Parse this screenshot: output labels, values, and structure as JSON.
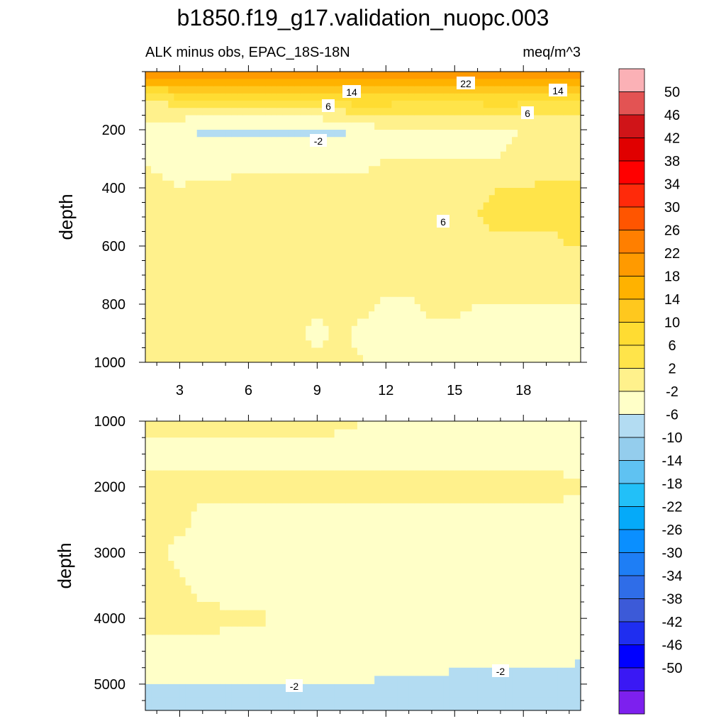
{
  "figure": {
    "title": "b1850.f19_g17.validation_nuopc.003",
    "left_subtitle": "ALK minus obs, EPAC_18S-18N",
    "right_subtitle": "meq/m^3"
  },
  "chart_data": [
    {
      "type": "heatmap",
      "name": "upper",
      "x": [
        1,
        2,
        3,
        4,
        5,
        6,
        7,
        8,
        9,
        10,
        11,
        12,
        13,
        14,
        15,
        16,
        17,
        18,
        19,
        20,
        21
      ],
      "y": [
        0,
        100,
        200,
        300,
        400,
        500,
        600,
        700,
        800,
        900,
        1000
      ],
      "xlim": [
        1.5,
        20.5
      ],
      "ylim": [
        0,
        1000
      ],
      "y_reversed": true,
      "xticks": [
        3,
        6,
        9,
        12,
        15,
        18
      ],
      "yticks": [
        200,
        400,
        600,
        800,
        1000
      ],
      "ylabel": "depth",
      "z": [
        [
          26,
          26,
          26,
          26,
          25,
          25,
          25,
          25,
          25,
          25,
          25,
          24,
          24,
          25,
          26,
          27,
          27,
          27,
          26,
          26,
          26
        ],
        [
          6,
          6,
          8,
          8,
          8,
          8,
          9,
          9,
          10,
          11,
          12,
          12,
          10,
          9,
          10,
          11,
          12,
          11,
          10,
          10,
          10
        ],
        [
          1,
          0,
          -1,
          -3,
          -3,
          -3,
          -3,
          -3,
          -3,
          -3,
          0,
          1,
          1,
          1,
          1,
          1,
          1,
          2,
          2,
          2,
          2
        ],
        [
          3,
          1,
          0,
          0,
          0,
          1,
          1,
          1,
          1,
          1,
          1,
          2,
          2,
          2,
          2,
          2,
          2,
          3,
          3,
          3,
          3
        ],
        [
          3,
          3,
          2,
          3,
          3,
          3,
          3,
          3,
          3,
          3,
          3,
          4,
          4,
          4,
          5,
          5,
          6,
          6,
          7,
          7,
          7
        ],
        [
          3,
          3,
          3,
          3,
          3,
          3,
          3,
          3,
          3,
          4,
          4,
          4,
          5,
          5,
          6,
          6,
          7,
          7,
          7,
          7,
          7
        ],
        [
          3,
          3,
          3,
          3,
          3,
          3,
          3,
          3,
          3,
          3,
          3,
          4,
          4,
          4,
          5,
          5,
          5,
          5,
          5,
          6,
          6
        ],
        [
          3,
          3,
          3,
          3,
          3,
          3,
          3,
          3,
          3,
          3,
          3,
          3,
          3,
          3,
          3,
          3,
          3,
          3,
          3,
          3,
          3
        ],
        [
          3,
          3,
          3,
          3,
          3,
          3,
          3,
          3,
          3,
          2.5,
          2.5,
          1.5,
          1.5,
          2.5,
          2.5,
          2,
          2,
          2,
          2,
          2,
          2
        ],
        [
          3,
          3,
          3,
          3,
          3,
          3,
          3,
          3,
          1,
          2.5,
          1.5,
          1,
          1,
          1.5,
          1.5,
          1,
          1,
          1,
          1,
          1,
          1
        ],
        [
          3,
          3,
          3,
          3,
          3,
          3,
          3,
          3,
          3,
          2.5,
          2,
          1,
          1,
          1.5,
          1.5,
          1,
          1,
          1,
          1,
          1,
          1
        ]
      ],
      "contour_labels": [
        "22",
        "14",
        "14",
        "6",
        "6",
        "-2",
        "6"
      ]
    },
    {
      "type": "heatmap",
      "name": "lower",
      "x": [
        1,
        2,
        3,
        4,
        5,
        6,
        7,
        8,
        9,
        10,
        11,
        12,
        13,
        14,
        15,
        16,
        17,
        18,
        19,
        20,
        21
      ],
      "y": [
        1000,
        1500,
        2000,
        2500,
        3000,
        3500,
        4000,
        4500,
        5000,
        5400
      ],
      "xlim": [
        1.5,
        20.5
      ],
      "ylim": [
        1000,
        5400
      ],
      "y_reversed": true,
      "xticks": [
        3,
        6,
        9,
        12,
        15,
        18
      ],
      "yticks": [
        1000,
        2000,
        3000,
        4000,
        5000
      ],
      "ylabel": "depth",
      "z": [
        [
          3,
          3,
          3,
          3,
          3,
          3,
          3,
          3,
          3,
          2.5,
          2,
          1,
          1,
          1.5,
          1.5,
          1,
          1,
          1,
          1,
          1,
          1
        ],
        [
          1,
          1,
          1,
          1,
          1,
          1,
          1,
          1,
          1,
          1,
          1,
          1,
          1,
          1,
          1,
          1,
          1,
          1,
          1,
          1,
          1
        ],
        [
          3,
          3,
          3,
          3,
          3,
          3,
          3,
          3,
          3,
          3,
          3,
          3,
          3,
          3,
          3,
          3,
          3,
          3,
          3,
          2.5,
          2.5
        ],
        [
          3,
          3,
          3,
          1,
          1,
          1,
          1,
          1,
          1,
          1,
          1,
          1,
          1,
          1,
          1,
          1,
          1,
          1,
          1,
          1,
          1
        ],
        [
          3,
          3,
          1,
          1,
          1,
          1,
          1,
          1,
          1,
          1,
          1,
          1,
          1,
          1,
          1,
          1,
          1,
          1,
          1,
          1,
          1
        ],
        [
          3,
          3,
          2.5,
          1,
          1,
          1,
          1,
          1,
          1,
          1,
          1,
          1,
          1,
          1,
          1,
          1,
          1,
          1,
          1,
          1,
          1
        ],
        [
          3,
          3,
          3,
          3,
          2.5,
          2.5,
          2,
          1,
          1,
          1,
          1,
          1,
          1,
          1,
          1,
          1,
          1,
          1,
          1,
          1,
          1
        ],
        [
          1,
          1,
          1,
          1,
          1,
          1,
          1,
          1,
          1,
          1,
          1,
          1,
          1,
          1,
          1,
          1,
          1,
          1,
          1,
          0,
          -1
        ],
        [
          -2,
          -2,
          -2,
          -2,
          -2,
          -2,
          -2,
          -2,
          -2,
          -2,
          -2,
          -3,
          -3,
          -3,
          -4,
          -4,
          -4,
          -5,
          -5,
          -5,
          -5
        ],
        [
          -6,
          -6,
          -6,
          -6,
          -6,
          -6,
          -6,
          -6,
          -6,
          -6,
          -6,
          -6,
          -6,
          -6,
          -6,
          -6,
          -6,
          -6,
          -6,
          -6,
          -6
        ]
      ],
      "contour_labels": [
        "-2",
        "-2"
      ]
    }
  ],
  "colorbar": {
    "levels": [
      "50",
      "46",
      "42",
      "38",
      "34",
      "30",
      "26",
      "22",
      "18",
      "14",
      "10",
      "6",
      "2",
      "-2",
      "-6",
      "-10",
      "-14",
      "-18",
      "-22",
      "-26",
      "-30",
      "-34",
      "-38",
      "-42",
      "-46",
      "-50"
    ],
    "colors": [
      "#fbb1b6",
      "#e35353",
      "#d01418",
      "#e00000",
      "#ff0000",
      "#ff2a0a",
      "#ff5500",
      "#ff7f00",
      "#ff9a00",
      "#ffb200",
      "#ffc81e",
      "#ffdc32",
      "#ffe44a",
      "#fff18c",
      "#ffffc8",
      "#b3dcf2",
      "#94cded",
      "#5fc2f2",
      "#22c0f8",
      "#05aaf9",
      "#0a8fff",
      "#1e7ef5",
      "#2f6de8",
      "#3c5ad8",
      "#1f2ef0",
      "#0000ff",
      "#3a18f4",
      "#7d20ee"
    ]
  }
}
